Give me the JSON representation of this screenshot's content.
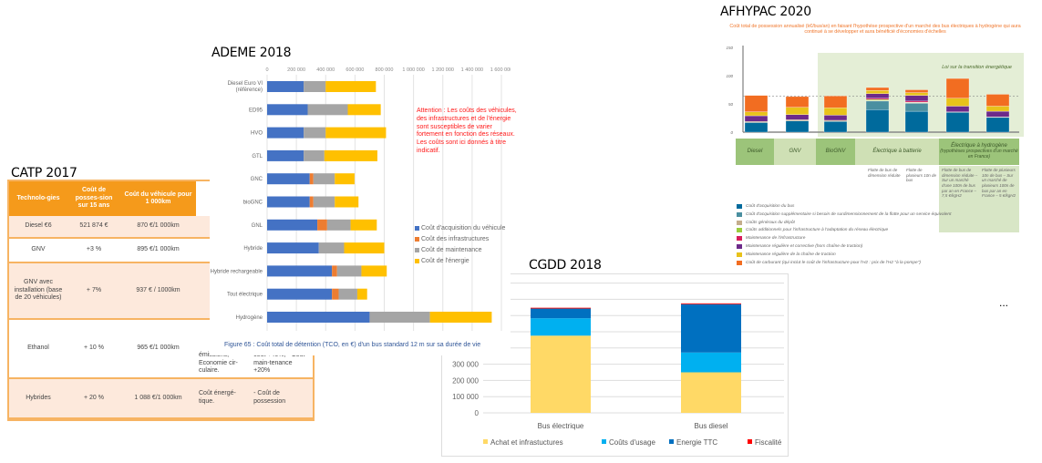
{
  "more_indicator": "...",
  "catp": {
    "title": "CATP 2017",
    "headers": [
      "Technolo-gies",
      "Coût de posses-sion sur 15 ans",
      "Coût du véhicule pour 1 000km"
    ],
    "rows": [
      {
        "tech": "Diesel €6",
        "cost15": "521 874 €",
        "cost1000": "870 €/1 000km",
        "c4": "",
        "c5": ""
      },
      {
        "tech": "GNV",
        "cost15": "+3 %",
        "cost1000": "895 €/1 000km",
        "c4": "",
        "c5": ""
      },
      {
        "tech": "GNV avec installation (base de 20 véhicules)",
        "cost15": "+ 7%",
        "cost1000": "937 € / 1000km",
        "c4": "",
        "c5": ""
      },
      {
        "tech": "Ethanol",
        "cost15": "+ 10 %",
        "cost1000": "965 €/1 000km",
        "c4": "émissions; Economie cir-culaire.",
        "c5": "coût +40%, - Coût main-tenance +20%"
      },
      {
        "tech": "Hybrides",
        "cost15": "+ 20 %",
        "cost1000": "1 088 €/1 000km",
        "c4": "Coût énergé-tique.",
        "c5": "- Coût de possession"
      }
    ]
  },
  "chart_data": [
    {
      "id": "ademe",
      "type": "bar",
      "orientation": "horizontal",
      "stacked": true,
      "title": "ADEME 2018",
      "caption": "Figure 65 : Coût total de détention (TCO, en €) d'un bus standard 12 m sur sa durée de vie",
      "annotation": "Attention : Les coûts des véhicules, des infrastructures et de l'énergie sont susceptibles de varier fortement en fonction des réseaux. Les coûts sont ici donnés à titre indicatif.",
      "xlim": [
        0,
        1600000
      ],
      "xticks": [
        "0",
        "200 000",
        "400 000",
        "600 000",
        "800 000",
        "1 000 000",
        "1 200 000",
        "1 400 000",
        "1 600 000"
      ],
      "grid": true,
      "legend_position": "right",
      "categories": [
        "Diesel Euro VI (référence)",
        "ED95",
        "HVO",
        "GTL",
        "GNC",
        "bioGNC",
        "GNL",
        "Hybride",
        "Hybride rechargeable",
        "Tout électrique",
        "Hydrogène"
      ],
      "series": [
        {
          "name": "Coût d'acquisition du véhicule",
          "color": "#4472c4",
          "values": [
            250000,
            277000,
            250000,
            250000,
            291000,
            291000,
            343000,
            353000,
            443000,
            443000,
            700000
          ]
        },
        {
          "name": "Coût des infrastructures",
          "color": "#ed7d31",
          "values": [
            0,
            0,
            0,
            0,
            25000,
            25000,
            67000,
            0,
            35000,
            46000,
            0
          ]
        },
        {
          "name": "Coût de maintenance",
          "color": "#a5a5a5",
          "values": [
            150000,
            274000,
            150000,
            141000,
            146000,
            146000,
            160000,
            173000,
            166000,
            127000,
            412000
          ]
        },
        {
          "name": "Coût de l'énergie",
          "color": "#ffc000",
          "values": [
            343000,
            225000,
            412000,
            362000,
            135000,
            162000,
            179000,
            274000,
            173000,
            67000,
            422000
          ]
        }
      ]
    },
    {
      "id": "cgdd",
      "type": "bar",
      "stacked": true,
      "title": "CGDD 2018",
      "ylim": [
        0,
        800000
      ],
      "yticks": [
        "0",
        "100 000",
        "200 000",
        "300 000"
      ],
      "grid": true,
      "legend_position": "bottom",
      "categories": [
        "Bus électrique",
        "Bus diesel"
      ],
      "series": [
        {
          "name": "Achat et infrastuctures",
          "color": "#ffd966",
          "values": [
            476000,
            250000
          ]
        },
        {
          "name": "Coûts d'usage",
          "color": "#00b0f0",
          "values": [
            107000,
            122000
          ]
        },
        {
          "name": "Energie TTC",
          "color": "#0070c0",
          "values": [
            60000,
            298000
          ]
        },
        {
          "name": "Fiscalité",
          "color": "#ff0000",
          "values": [
            5000,
            5000
          ]
        }
      ]
    },
    {
      "id": "afhypac",
      "type": "bar",
      "stacked": true,
      "title": "AFHYPAC 2020",
      "subtitle": "Coût total de possession annualisé (k€/bus/an) en faisant l'hypothèse prospective d'un marché des bus électriques à hydrogène qui aura continué à se développer et aura bénéficié d'économies d'échelles",
      "ylim": [
        0,
        150
      ],
      "yticks": [
        "0",
        "50",
        "100",
        "150"
      ],
      "reference_line": 64,
      "shaded_region_label": "Loi sur la transition énergétique",
      "legend_position": "bottom",
      "groups": [
        {
          "label": "Diesel",
          "bars": 1
        },
        {
          "label": "GNV",
          "bars": 1
        },
        {
          "label": "BioGNV",
          "bars": 1
        },
        {
          "label": "Électrique à batterie",
          "bars": 2
        },
        {
          "label": "Électrique à hydrogène",
          "sublabel": "(hypothèses prospectives d'un marché en France)",
          "bars": 2
        }
      ],
      "bar_notes": [
        "Flotte de bus de dimension réduite",
        "Flotte de plusieurs 10n de bus",
        "Flotte de bus de dimension réduite – Sur un marché d'une 100n de bus par an en France – 7,5 €/kgH2",
        "Flotte de plusieurs 10n de bus – Sur un marché de plusieurs 100n de bus par an en France – 5 €/kgH2"
      ],
      "series": [
        {
          "name": "Coût d'acquisition du bus",
          "color": "#006a9c",
          "values": [
            17,
            20,
            19,
            40,
            37,
            35,
            26
          ]
        },
        {
          "name": "Coût d'acquisition supplémentaire si besoin de surdimensionnement de la flotte pour un service équivalent",
          "color": "#4a8fa0",
          "values": [
            0,
            0,
            0,
            15,
            14,
            0,
            0
          ]
        },
        {
          "name": "Coûts généraux du dépôt",
          "color": "#c4ad8c",
          "values": [
            2,
            2,
            2,
            1,
            1,
            1,
            1
          ]
        },
        {
          "name": "Coûts additionnels pour l'infrastructure à l'adaptation du réseau électrique",
          "color": "#9bcc3c",
          "values": [
            0,
            0,
            0,
            2,
            1,
            0,
            0
          ]
        },
        {
          "name": "Maintenance de l'infrastructure",
          "color": "#d81e5b",
          "values": [
            0,
            0,
            0,
            2,
            2,
            0,
            0
          ]
        },
        {
          "name": "Maintenance régulière et corrective (hors chaîne de traction)",
          "color": "#6d2a8a",
          "values": [
            10,
            9,
            9,
            8,
            10,
            10,
            10
          ]
        },
        {
          "name": "Maintenance régulière de la chaîne de traction",
          "color": "#e8c21a",
          "values": [
            7,
            13,
            13,
            6,
            5,
            14,
            9
          ]
        },
        {
          "name": "Coût de carburant (qui inclut le coût de l'infrastructure pour l'H2 : prix de l'H2 \"à la pompe\")",
          "color": "#f26d21",
          "values": [
            29,
            19,
            21,
            5,
            5,
            35,
            21
          ]
        }
      ]
    }
  ]
}
